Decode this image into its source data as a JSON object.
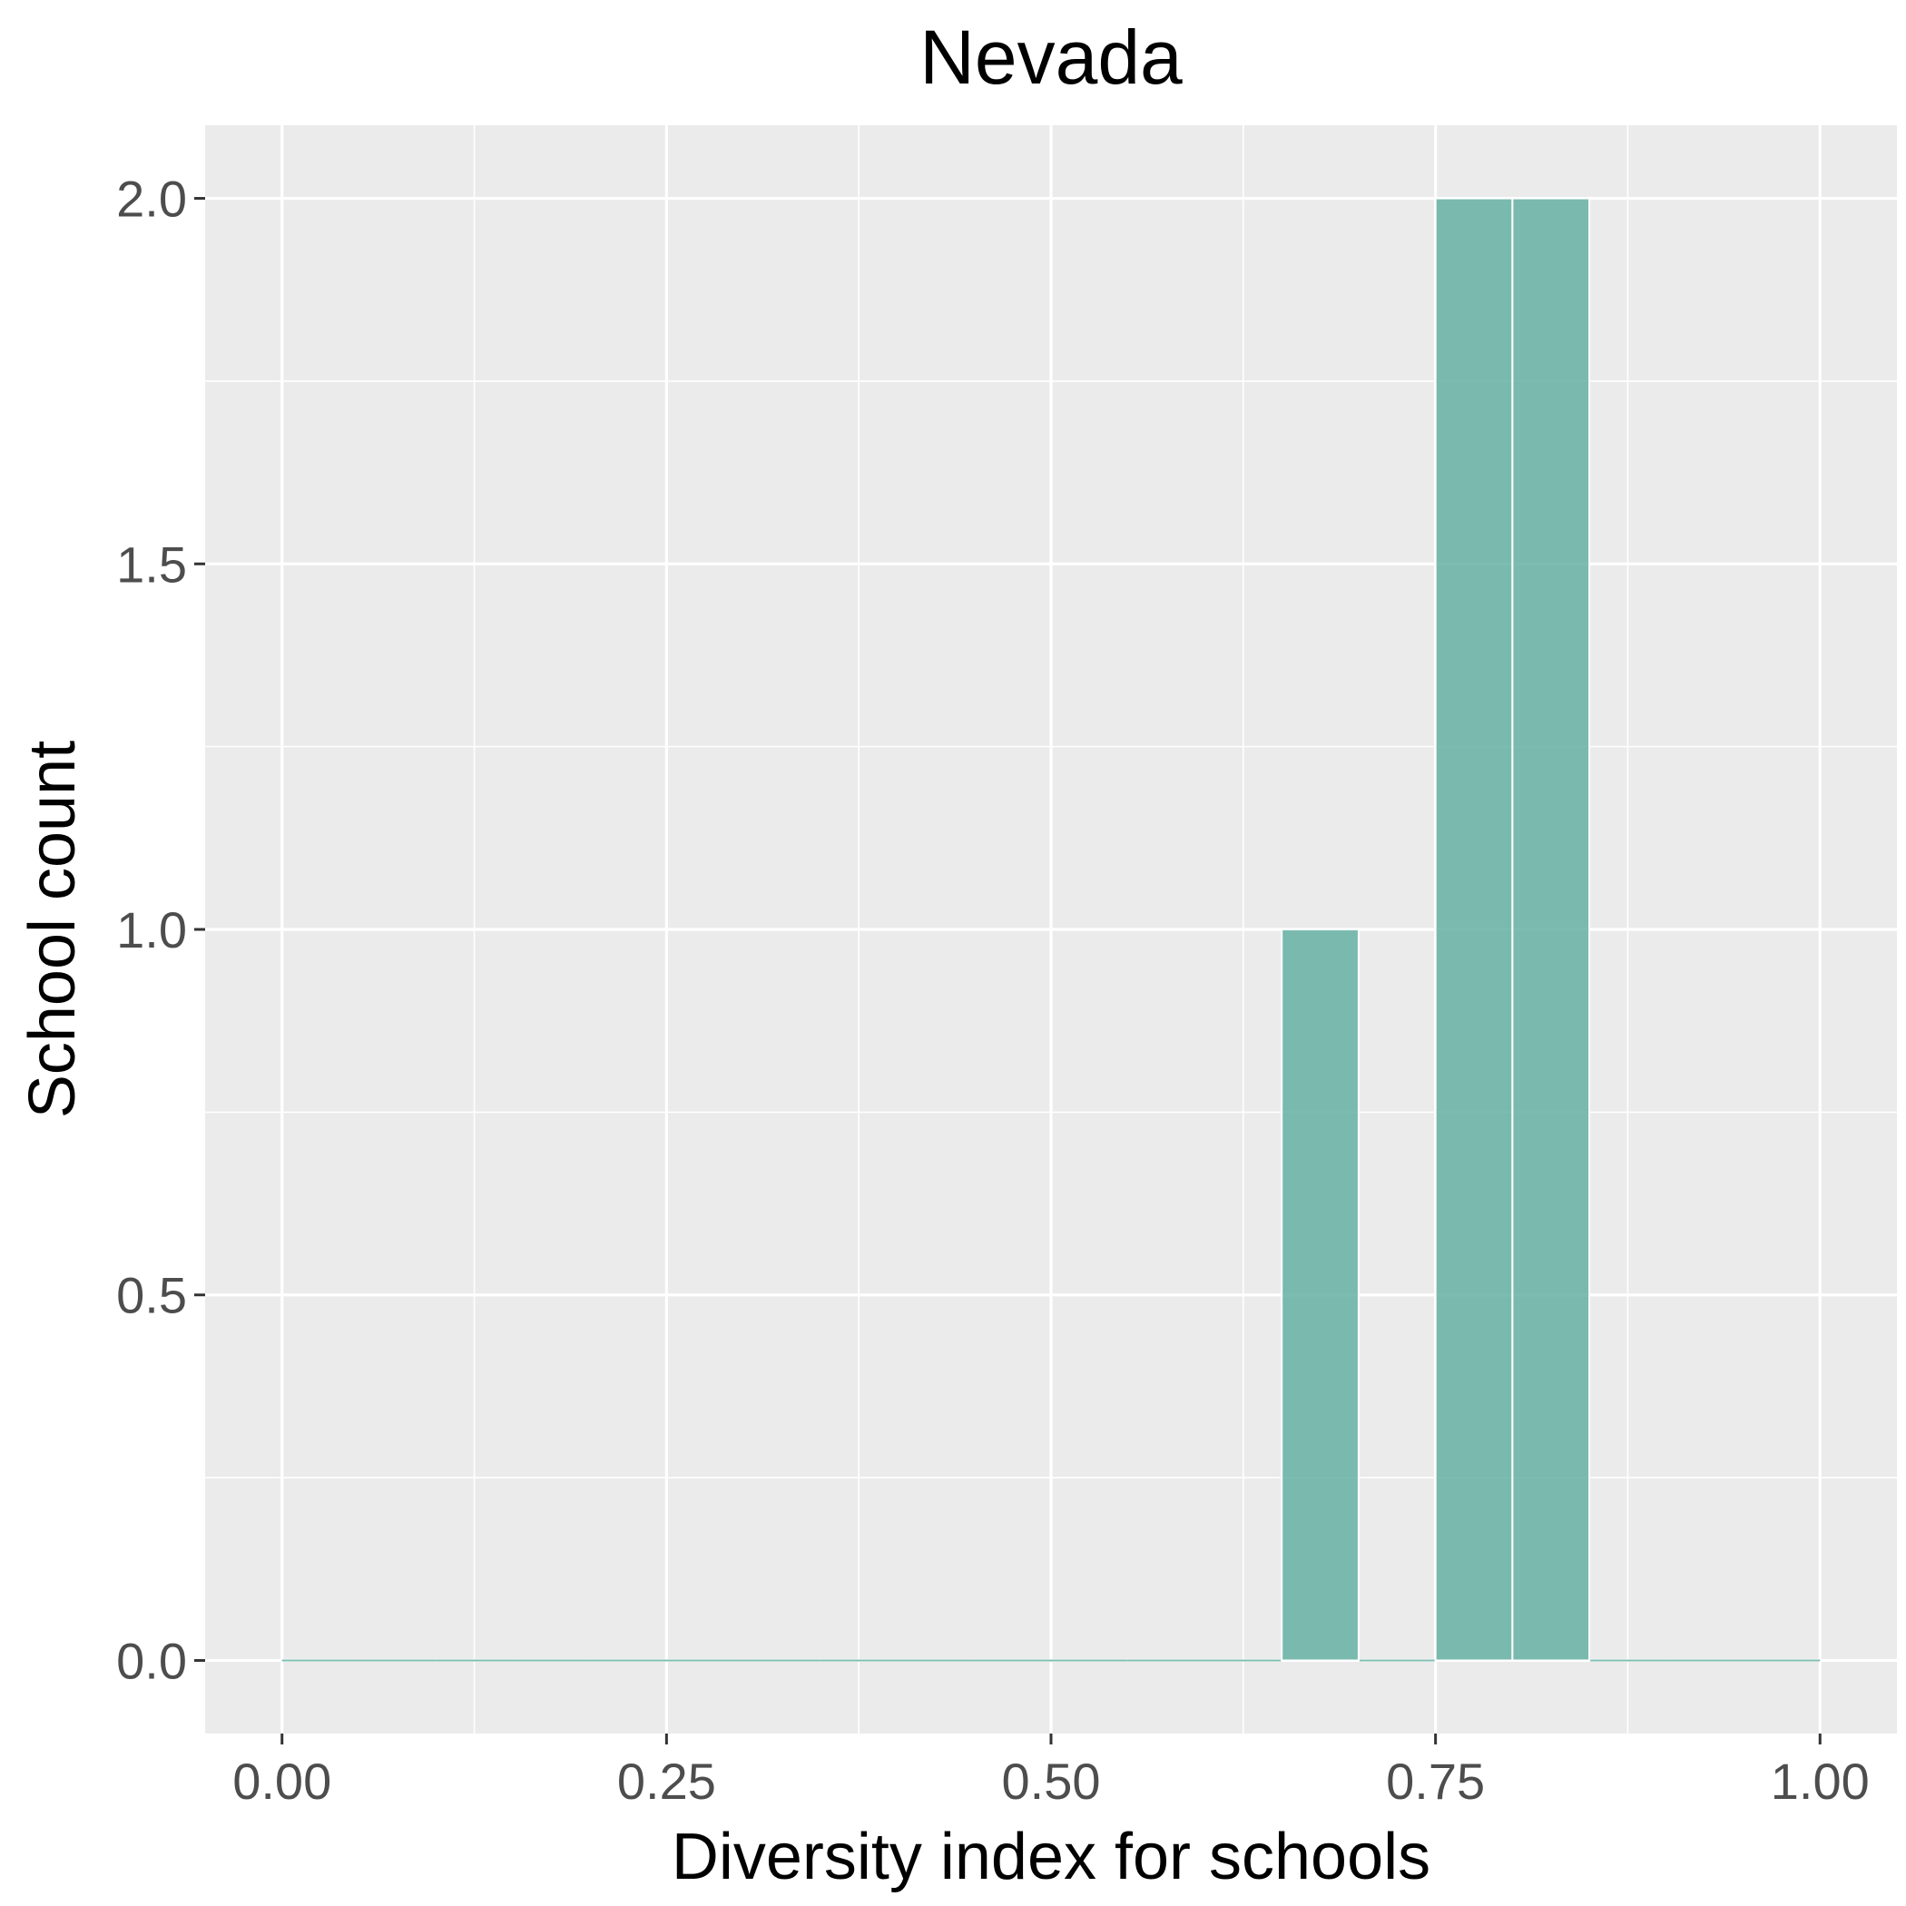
{
  "chart_data": {
    "type": "bar",
    "title": "Nevada",
    "xlabel": "Diversity index for schools",
    "ylabel": "School count",
    "xlim": [
      -0.05,
      1.05
    ],
    "ylim": [
      -0.1,
      2.1
    ],
    "x_ticks": [
      0,
      0.25,
      0.5,
      0.75,
      1
    ],
    "x_tick_labels": [
      "0.00",
      "0.25",
      "0.50",
      "0.75",
      "1.00"
    ],
    "y_ticks": [
      0,
      0.5,
      1,
      1.5,
      2
    ],
    "y_tick_labels": [
      "0.0",
      "0.5",
      "1.0",
      "1.5",
      "2.0"
    ],
    "bin_width": 0.05,
    "bins": [
      {
        "x_start": 0.0,
        "x_end": 0.05,
        "count": 0
      },
      {
        "x_start": 0.05,
        "x_end": 0.1,
        "count": 0
      },
      {
        "x_start": 0.1,
        "x_end": 0.15,
        "count": 0
      },
      {
        "x_start": 0.15,
        "x_end": 0.2,
        "count": 0
      },
      {
        "x_start": 0.2,
        "x_end": 0.25,
        "count": 0
      },
      {
        "x_start": 0.25,
        "x_end": 0.3,
        "count": 0
      },
      {
        "x_start": 0.3,
        "x_end": 0.35,
        "count": 0
      },
      {
        "x_start": 0.35,
        "x_end": 0.4,
        "count": 0
      },
      {
        "x_start": 0.4,
        "x_end": 0.45,
        "count": 0
      },
      {
        "x_start": 0.45,
        "x_end": 0.5,
        "count": 0
      },
      {
        "x_start": 0.5,
        "x_end": 0.55,
        "count": 0
      },
      {
        "x_start": 0.55,
        "x_end": 0.6,
        "count": 0
      },
      {
        "x_start": 0.6,
        "x_end": 0.65,
        "count": 0
      },
      {
        "x_start": 0.65,
        "x_end": 0.7,
        "count": 1
      },
      {
        "x_start": 0.7,
        "x_end": 0.75,
        "count": 0
      },
      {
        "x_start": 0.75,
        "x_end": 0.8,
        "count": 2
      },
      {
        "x_start": 0.8,
        "x_end": 0.85,
        "count": 2
      },
      {
        "x_start": 0.85,
        "x_end": 0.9,
        "count": 0
      },
      {
        "x_start": 0.9,
        "x_end": 0.95,
        "count": 0
      },
      {
        "x_start": 0.95,
        "x_end": 1.0,
        "count": 0
      }
    ],
    "bar_color": "#66b2a3",
    "bar_opacity": 0.85,
    "panel_background": "#ebebeb",
    "grid": true,
    "legend": "none"
  }
}
